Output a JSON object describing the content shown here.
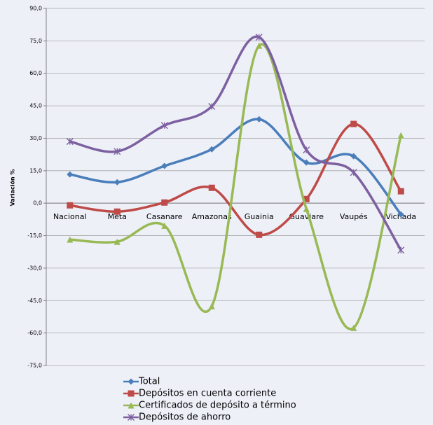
{
  "chart_data": {
    "type": "line",
    "smooth": true,
    "grid": true,
    "legend": "bottom",
    "ylabel": "Variación %",
    "categories": [
      "Nacional",
      "Meta",
      "Casanare",
      "Amazonas",
      "Guainia",
      "Guaviare",
      "Vaupés",
      "Vichada"
    ],
    "series": [
      {
        "name": "Total",
        "color": "#4a7ebb",
        "marker": "diamond",
        "values": [
          13.3,
          9.7,
          17.2,
          24.9,
          38.8,
          18.8,
          21.7,
          -5.2
        ]
      },
      {
        "name": "Depósitos en cuenta corriente",
        "color": "#be4b48",
        "marker": "square",
        "values": [
          -1.0,
          -3.9,
          0.3,
          7.1,
          -14.6,
          1.9,
          36.6,
          5.5
        ]
      },
      {
        "name": "Certificados de depósito a término",
        "color": "#98b954",
        "marker": "triangle",
        "values": [
          -16.8,
          -17.8,
          -10.4,
          -47.6,
          72.8,
          -2.6,
          -57.6,
          31.4
        ]
      },
      {
        "name": "Depósitos de ahorro",
        "color": "#7d60a0",
        "marker": "star",
        "values": [
          28.5,
          23.9,
          35.9,
          44.7,
          76.7,
          24.6,
          14.2,
          -21.7
        ]
      }
    ],
    "ylim": [
      -75,
      90
    ],
    "yticks": [
      {
        "value": -75,
        "label": "-75,0"
      },
      {
        "value": -60,
        "label": "-60,0"
      },
      {
        "value": -45,
        "label": "-45,0"
      },
      {
        "value": -30,
        "label": "-30,0"
      },
      {
        "value": -15,
        "label": "-15,0"
      },
      {
        "value": 0,
        "label": "0,0"
      },
      {
        "value": 15,
        "label": "15,0"
      },
      {
        "value": 30,
        "label": "30,0"
      },
      {
        "value": 45,
        "label": "45,0"
      },
      {
        "value": 60,
        "label": "60,0"
      },
      {
        "value": 75,
        "label": "75,0"
      },
      {
        "value": 90,
        "label": "90,0"
      }
    ]
  }
}
